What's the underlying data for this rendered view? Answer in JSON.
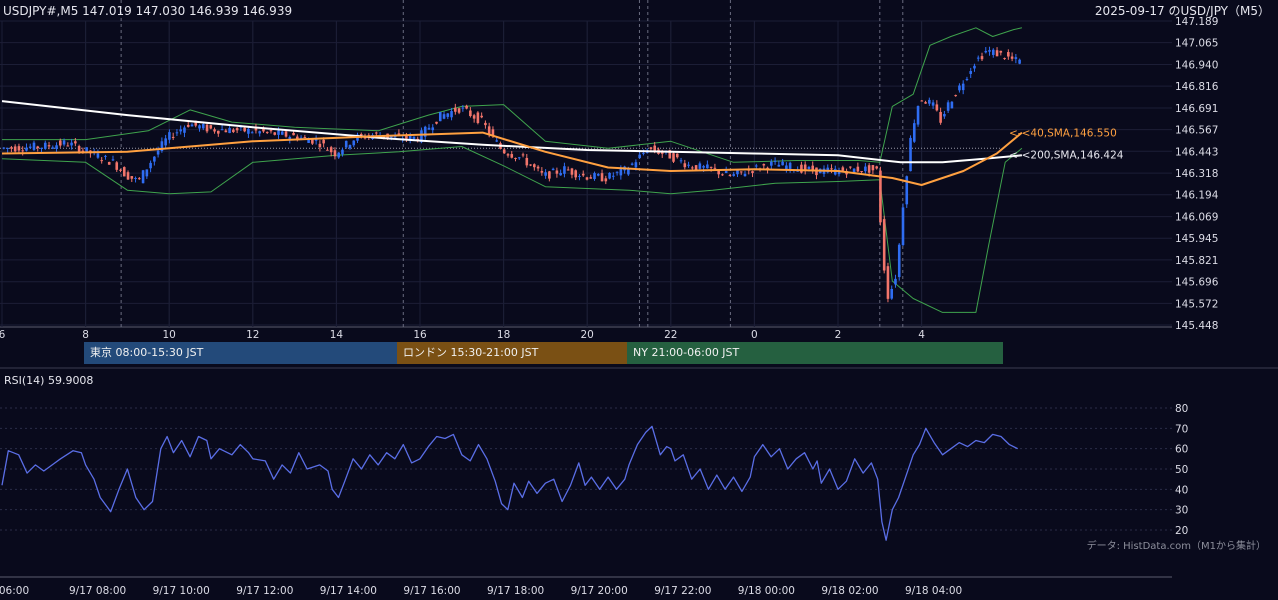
{
  "header": {
    "ohlc": "USDJPY#,M5 147.019 147.030 146.939 146.939",
    "title": "2025-09-17 のUSD/JPY（M5）"
  },
  "sessions": [
    {
      "label": "東京 08:00-15:30 JST",
      "color": "#234a7a"
    },
    {
      "label": "ロンドン 15:30-21:00 JST",
      "color": "#7a5014"
    },
    {
      "label": "NY 21:00-06:00 JST",
      "color": "#256040"
    }
  ],
  "rsi_label": "RSI(14) 59.9008",
  "credit": "データ: HistData.com（M1から集計）",
  "colors": {
    "background": "#090a1c",
    "up": "#2f6df2",
    "down": "#f2756b",
    "sma40": "#ffa040",
    "sma200": "#ffffff",
    "bollinger": "#3fa34d",
    "rsi": "#5a6ee6"
  },
  "chart_data": [
    {
      "type": "candlestick",
      "title": "USD/JPY M5",
      "y_ticks": [
        "147.189",
        "147.065",
        "146.940",
        "146.816",
        "146.691",
        "146.567",
        "146.443",
        "146.318",
        "146.194",
        "146.069",
        "145.945",
        "145.821",
        "145.696",
        "145.572",
        "145.448"
      ],
      "ylim": [
        145.448,
        147.189
      ],
      "x_ticks": [
        "6",
        "8",
        "10",
        "12",
        "14",
        "16",
        "18",
        "20",
        "22",
        "0",
        "2",
        "4"
      ],
      "annotations": [
        "<-<40,SMA,146.550",
        "<-<200,SMA,146.424"
      ],
      "price_path": [
        [
          6.0,
          146.46
        ],
        [
          7.0,
          146.47
        ],
        [
          7.6,
          146.49
        ],
        [
          8.2,
          146.43
        ],
        [
          8.7,
          146.38
        ],
        [
          9.0,
          146.31
        ],
        [
          9.3,
          146.27
        ],
        [
          9.7,
          146.42
        ],
        [
          10.0,
          146.52
        ],
        [
          10.5,
          146.6
        ],
        [
          11.0,
          146.57
        ],
        [
          12.0,
          146.56
        ],
        [
          13.0,
          146.53
        ],
        [
          13.6,
          146.5
        ],
        [
          14.0,
          146.43
        ],
        [
          14.5,
          146.52
        ],
        [
          15.0,
          146.54
        ],
        [
          15.5,
          146.52
        ],
        [
          16.0,
          146.52
        ],
        [
          16.5,
          146.64
        ],
        [
          17.0,
          146.69
        ],
        [
          17.5,
          146.62
        ],
        [
          18.0,
          146.45
        ],
        [
          18.5,
          146.4
        ],
        [
          19.0,
          146.3
        ],
        [
          19.5,
          146.34
        ],
        [
          20.0,
          146.3
        ],
        [
          20.5,
          146.29
        ],
        [
          21.0,
          146.34
        ],
        [
          21.5,
          146.46
        ],
        [
          22.0,
          146.42
        ],
        [
          22.5,
          146.36
        ],
        [
          23.0,
          146.34
        ],
        [
          23.5,
          146.3
        ],
        [
          24.0,
          146.34
        ],
        [
          24.5,
          146.37
        ],
        [
          25.0,
          146.35
        ],
        [
          25.5,
          146.33
        ],
        [
          26.0,
          146.33
        ],
        [
          26.5,
          146.34
        ],
        [
          26.8,
          146.34
        ],
        [
          27.0,
          146.33
        ],
        [
          27.1,
          145.86
        ],
        [
          27.25,
          145.6
        ],
        [
          27.45,
          145.75
        ],
        [
          27.6,
          146.14
        ],
        [
          27.8,
          146.55
        ],
        [
          28.0,
          146.75
        ],
        [
          28.3,
          146.71
        ],
        [
          28.5,
          146.62
        ],
        [
          28.7,
          146.72
        ],
        [
          29.0,
          146.83
        ],
        [
          29.3,
          146.95
        ],
        [
          29.6,
          147.02
        ],
        [
          29.9,
          147.0
        ],
        [
          30.3,
          146.96
        ]
      ],
      "series": [
        {
          "name": "40,SMA",
          "points": [
            [
              6.0,
              146.43
            ],
            [
              9.0,
              146.44
            ],
            [
              12.0,
              146.5
            ],
            [
              15.0,
              146.53
            ],
            [
              17.5,
              146.55
            ],
            [
              19.0,
              146.44
            ],
            [
              20.5,
              146.35
            ],
            [
              22.0,
              146.33
            ],
            [
              24.0,
              146.34
            ],
            [
              26.0,
              146.33
            ],
            [
              27.3,
              146.29
            ],
            [
              28.0,
              146.25
            ],
            [
              29.0,
              146.33
            ],
            [
              29.8,
              146.43
            ],
            [
              30.4,
              146.55
            ]
          ]
        },
        {
          "name": "200,SMA",
          "points": [
            [
              6.0,
              146.73
            ],
            [
              9.0,
              146.65
            ],
            [
              12.0,
              146.58
            ],
            [
              15.0,
              146.52
            ],
            [
              17.5,
              146.48
            ],
            [
              20.0,
              146.45
            ],
            [
              22.0,
              146.44
            ],
            [
              24.0,
              146.43
            ],
            [
              26.0,
              146.42
            ],
            [
              27.5,
              146.38
            ],
            [
              28.5,
              146.38
            ],
            [
              29.5,
              146.4
            ],
            [
              30.4,
              146.42
            ]
          ]
        },
        {
          "name": "BB upper",
          "points": [
            [
              6.0,
              146.51
            ],
            [
              8.0,
              146.51
            ],
            [
              9.5,
              146.56
            ],
            [
              10.5,
              146.68
            ],
            [
              11.5,
              146.61
            ],
            [
              13.0,
              146.58
            ],
            [
              15.0,
              146.56
            ],
            [
              16.2,
              146.65
            ],
            [
              17.0,
              146.7
            ],
            [
              18.0,
              146.71
            ],
            [
              19.0,
              146.5
            ],
            [
              20.5,
              146.46
            ],
            [
              22.0,
              146.5
            ],
            [
              23.5,
              146.38
            ],
            [
              25.0,
              146.39
            ],
            [
              26.5,
              146.39
            ],
            [
              27.0,
              146.38
            ],
            [
              27.3,
              146.7
            ],
            [
              27.8,
              146.77
            ],
            [
              28.2,
              147.05
            ],
            [
              28.7,
              147.1
            ],
            [
              29.3,
              147.15
            ],
            [
              29.7,
              147.1
            ],
            [
              30.2,
              147.14
            ],
            [
              30.4,
              147.15
            ]
          ]
        },
        {
          "name": "BB lower",
          "points": [
            [
              6.0,
              146.4
            ],
            [
              8.0,
              146.38
            ],
            [
              9.0,
              146.22
            ],
            [
              10.0,
              146.2
            ],
            [
              11.0,
              146.21
            ],
            [
              12.0,
              146.38
            ],
            [
              14.0,
              146.42
            ],
            [
              15.5,
              146.44
            ],
            [
              17.0,
              146.47
            ],
            [
              18.0,
              146.36
            ],
            [
              19.0,
              146.24
            ],
            [
              21.0,
              146.22
            ],
            [
              22.0,
              146.2
            ],
            [
              23.0,
              146.22
            ],
            [
              24.5,
              146.26
            ],
            [
              26.0,
              146.27
            ],
            [
              27.0,
              146.28
            ],
            [
              27.3,
              145.7
            ],
            [
              27.8,
              145.6
            ],
            [
              28.5,
              145.52
            ],
            [
              29.3,
              145.52
            ],
            [
              29.6,
              145.9
            ],
            [
              30.0,
              146.38
            ],
            [
              30.4,
              146.46
            ]
          ]
        }
      ],
      "legend": "none"
    },
    {
      "type": "line",
      "title": "RSI(14)",
      "y_ticks": [
        "80",
        "70",
        "60",
        "50",
        "40",
        "30",
        "20"
      ],
      "ylim": [
        20,
        80
      ],
      "x_ticks": [
        "06:00",
        "9/17 08:00",
        "9/17 10:00",
        "9/17 12:00",
        "9/17 14:00",
        "9/17 16:00",
        "9/17 18:00",
        "9/17 20:00",
        "9/17 22:00",
        "9/18 00:00",
        "9/18 02:00",
        "9/18 04:00"
      ],
      "series": [
        {
          "name": "RSI(14)",
          "points": [
            [
              6.0,
              42
            ],
            [
              6.15,
              59
            ],
            [
              6.4,
              57
            ],
            [
              6.6,
              48
            ],
            [
              6.8,
              52
            ],
            [
              7.0,
              49
            ],
            [
              7.2,
              52
            ],
            [
              7.4,
              55
            ],
            [
              7.7,
              59
            ],
            [
              7.9,
              58
            ],
            [
              8.0,
              52
            ],
            [
              8.2,
              45
            ],
            [
              8.35,
              36
            ],
            [
              8.6,
              29
            ],
            [
              8.8,
              40
            ],
            [
              9.0,
              50
            ],
            [
              9.2,
              36
            ],
            [
              9.4,
              30
            ],
            [
              9.6,
              34
            ],
            [
              9.8,
              60
            ],
            [
              9.95,
              66
            ],
            [
              10.1,
              58
            ],
            [
              10.3,
              64
            ],
            [
              10.5,
              56
            ],
            [
              10.7,
              66
            ],
            [
              10.9,
              64
            ],
            [
              11.0,
              55
            ],
            [
              11.2,
              60
            ],
            [
              11.5,
              57
            ],
            [
              11.7,
              62
            ],
            [
              11.9,
              58
            ],
            [
              12.0,
              55
            ],
            [
              12.3,
              54
            ],
            [
              12.5,
              45
            ],
            [
              12.7,
              52
            ],
            [
              12.9,
              48
            ],
            [
              13.1,
              58
            ],
            [
              13.3,
              50
            ],
            [
              13.6,
              52
            ],
            [
              13.8,
              49
            ],
            [
              13.9,
              40
            ],
            [
              14.05,
              36
            ],
            [
              14.2,
              44
            ],
            [
              14.4,
              55
            ],
            [
              14.6,
              50
            ],
            [
              14.8,
              57
            ],
            [
              15.0,
              52
            ],
            [
              15.2,
              58
            ],
            [
              15.4,
              55
            ],
            [
              15.6,
              62
            ],
            [
              15.8,
              53
            ],
            [
              16.0,
              55
            ],
            [
              16.2,
              61
            ],
            [
              16.4,
              66
            ],
            [
              16.6,
              65
            ],
            [
              16.8,
              67
            ],
            [
              17.0,
              57
            ],
            [
              17.2,
              54
            ],
            [
              17.4,
              62
            ],
            [
              17.6,
              55
            ],
            [
              17.8,
              44
            ],
            [
              17.95,
              33
            ],
            [
              18.1,
              30
            ],
            [
              18.25,
              43
            ],
            [
              18.45,
              36
            ],
            [
              18.6,
              44
            ],
            [
              18.8,
              38
            ],
            [
              19.0,
              43
            ],
            [
              19.2,
              45
            ],
            [
              19.4,
              34
            ],
            [
              19.6,
              42
            ],
            [
              19.8,
              53
            ],
            [
              19.95,
              42
            ],
            [
              20.1,
              46
            ],
            [
              20.3,
              40
            ],
            [
              20.5,
              46
            ],
            [
              20.7,
              40
            ],
            [
              20.9,
              45
            ],
            [
              21.0,
              52
            ],
            [
              21.2,
              62
            ],
            [
              21.4,
              68
            ],
            [
              21.55,
              71
            ],
            [
              21.75,
              57
            ],
            [
              21.9,
              61
            ],
            [
              22.0,
              60
            ],
            [
              22.1,
              54
            ],
            [
              22.3,
              57
            ],
            [
              22.5,
              45
            ],
            [
              22.7,
              50
            ],
            [
              22.9,
              40
            ],
            [
              23.1,
              47
            ],
            [
              23.3,
              40
            ],
            [
              23.5,
              46
            ],
            [
              23.7,
              39
            ],
            [
              23.9,
              46
            ],
            [
              24.0,
              56
            ],
            [
              24.2,
              62
            ],
            [
              24.4,
              56
            ],
            [
              24.6,
              60
            ],
            [
              24.8,
              50
            ],
            [
              25.0,
              55
            ],
            [
              25.2,
              58
            ],
            [
              25.4,
              50
            ],
            [
              25.5,
              54
            ],
            [
              25.6,
              43
            ],
            [
              25.8,
              50
            ],
            [
              26.0,
              40
            ],
            [
              26.2,
              44
            ],
            [
              26.4,
              55
            ],
            [
              26.6,
              48
            ],
            [
              26.8,
              53
            ],
            [
              26.95,
              45
            ],
            [
              27.05,
              24
            ],
            [
              27.15,
              15
            ],
            [
              27.3,
              30
            ],
            [
              27.45,
              36
            ],
            [
              27.6,
              45
            ],
            [
              27.8,
              57
            ],
            [
              27.95,
              62
            ],
            [
              28.1,
              70
            ],
            [
              28.3,
              63
            ],
            [
              28.5,
              57
            ],
            [
              28.7,
              60
            ],
            [
              28.9,
              63
            ],
            [
              29.1,
              61
            ],
            [
              29.3,
              64
            ],
            [
              29.5,
              63
            ],
            [
              29.7,
              67
            ],
            [
              29.9,
              66
            ],
            [
              30.1,
              62
            ],
            [
              30.3,
              60
            ]
          ]
        }
      ]
    }
  ]
}
